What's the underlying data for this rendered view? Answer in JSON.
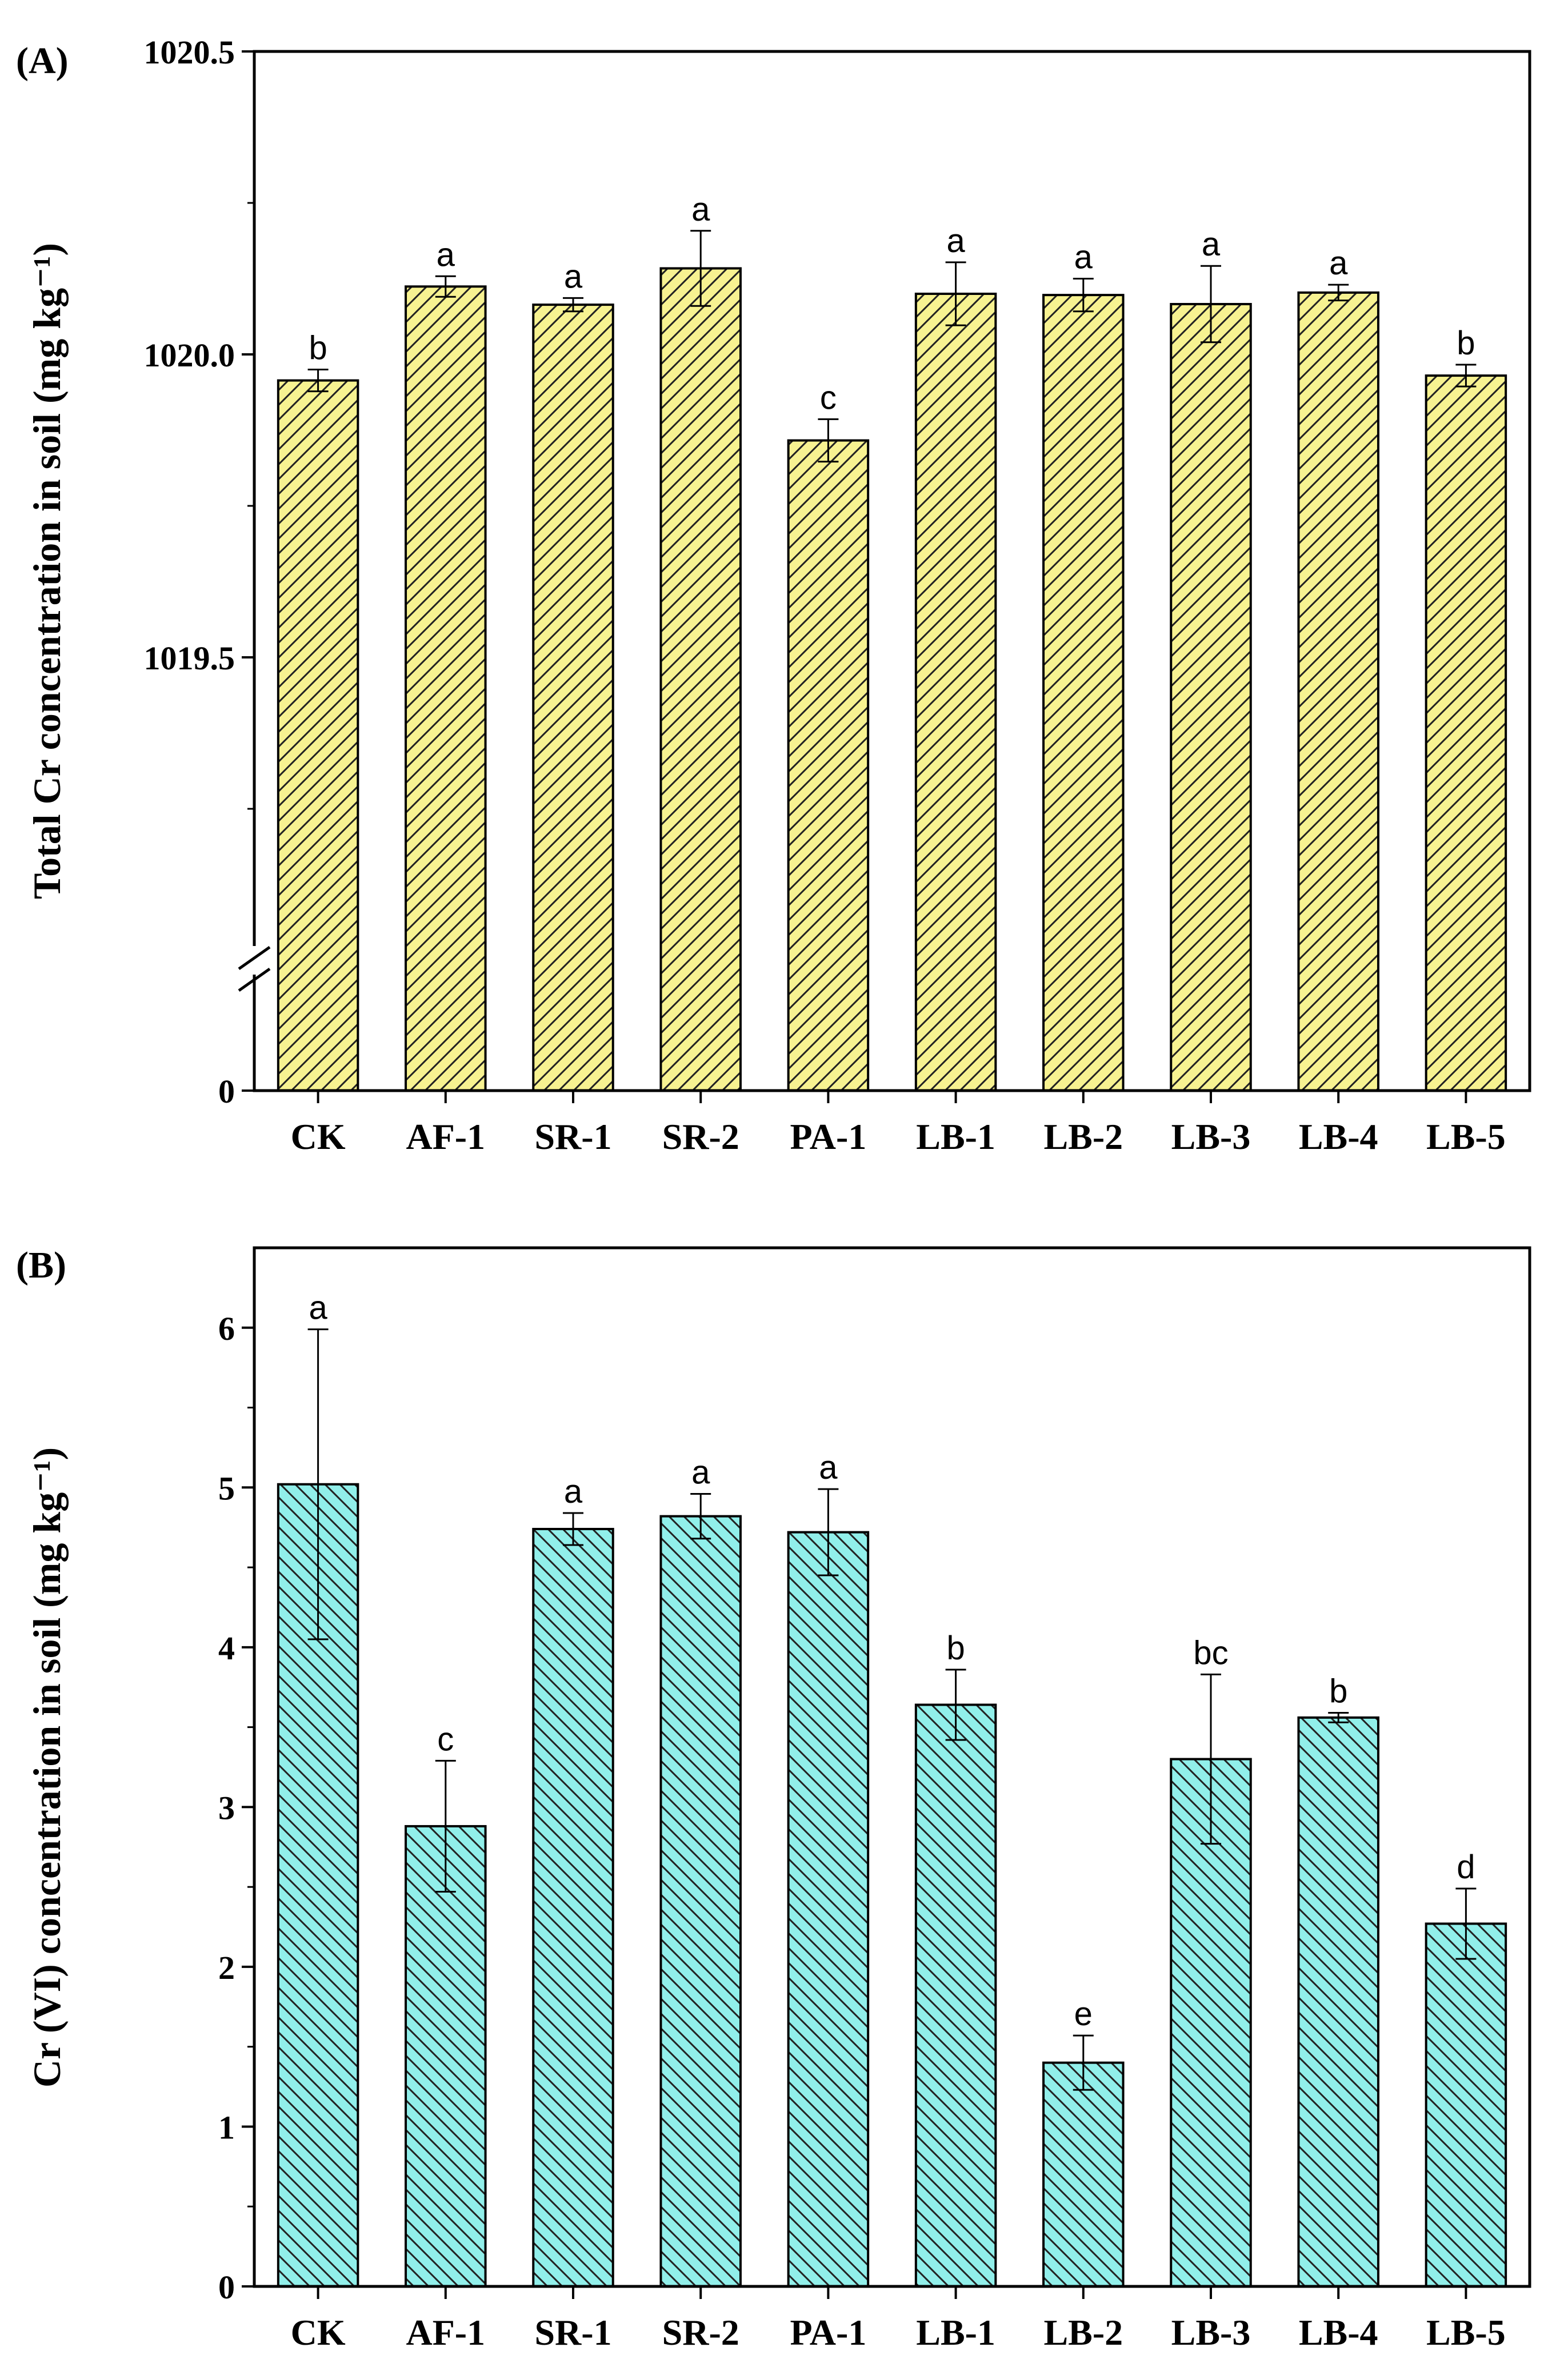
{
  "chart_data": [
    {
      "type": "bar",
      "panel_label": "(A)",
      "ylabel": "Total Cr concentration in soil (mg kg⁻¹)",
      "xlabel": "",
      "categories": [
        "CK",
        "AF-1",
        "SR-1",
        "SR-2",
        "PA-1",
        "LB-1",
        "LB-2",
        "LB-3",
        "LB-4",
        "LB-5"
      ],
      "values": [
        1019.957,
        1020.112,
        1020.082,
        1020.142,
        1019.858,
        1020.1,
        1020.098,
        1020.083,
        1020.102,
        1019.965
      ],
      "errors": [
        0.018,
        0.017,
        0.011,
        0.062,
        0.035,
        0.052,
        0.027,
        0.063,
        0.013,
        0.018
      ],
      "significance": [
        "b",
        "a",
        "a",
        "a",
        "c",
        "a",
        "a",
        "a",
        "a",
        "b"
      ],
      "ylim": [
        1019.0,
        1020.5
      ],
      "axis_break": true,
      "yticks": [
        0,
        1019.5,
        1020.0,
        1020.5
      ],
      "ytick_labels": [
        "0",
        "1019.5",
        "1020.0",
        "1020.5"
      ],
      "bar_color": "#F7F291",
      "hatch": "forward-diagonal"
    },
    {
      "type": "bar",
      "panel_label": "(B)",
      "ylabel": "Cr (VI) concentration in soil (mg kg⁻¹)",
      "xlabel": "",
      "categories": [
        "CK",
        "AF-1",
        "SR-1",
        "SR-2",
        "PA-1",
        "LB-1",
        "LB-2",
        "LB-3",
        "LB-4",
        "LB-5"
      ],
      "values": [
        5.02,
        2.88,
        4.74,
        4.82,
        4.72,
        3.64,
        1.4,
        3.3,
        3.56,
        2.27
      ],
      "errors": [
        0.97,
        0.41,
        0.1,
        0.14,
        0.27,
        0.22,
        0.17,
        0.53,
        0.03,
        0.22
      ],
      "significance": [
        "a",
        "c",
        "a",
        "a",
        "a",
        "b",
        "e",
        "bc",
        "b",
        "d"
      ],
      "ylim": [
        0,
        6.5
      ],
      "axis_break": false,
      "yticks": [
        0,
        1,
        2,
        3,
        4,
        5,
        6
      ],
      "ytick_labels": [
        "0",
        "1",
        "2",
        "3",
        "4",
        "5",
        "6"
      ],
      "bar_color": "#91EFEA",
      "hatch": "backward-diagonal"
    }
  ]
}
